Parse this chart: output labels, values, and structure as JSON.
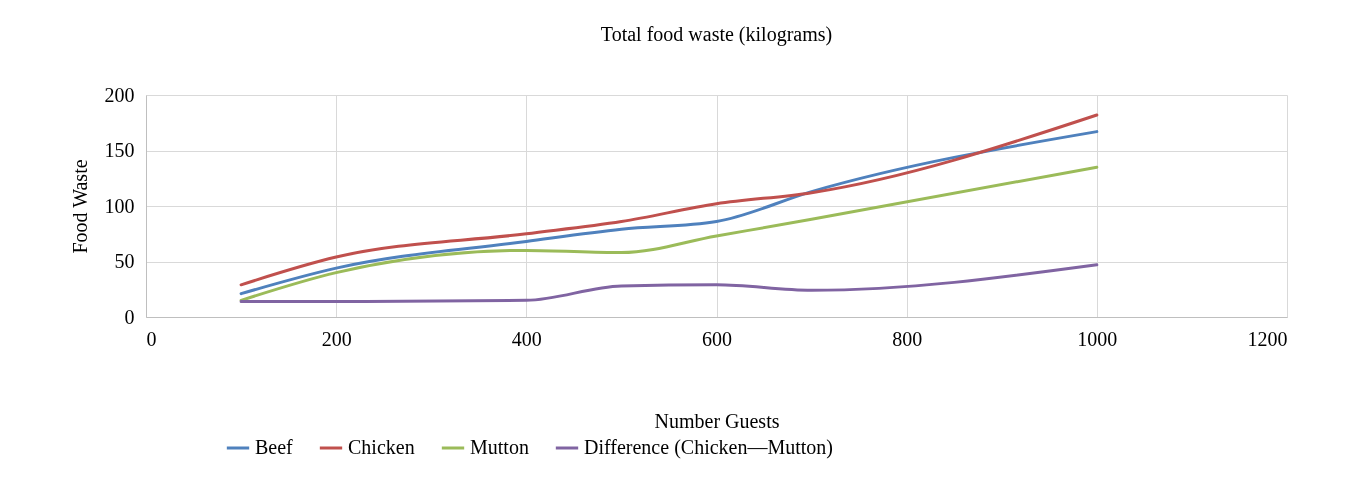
{
  "chart_data": {
    "type": "line",
    "title": "Total food waste (kilograms)",
    "xlabel": "Number Guests",
    "ylabel": "Food Waste",
    "x": [
      100,
      200,
      400,
      500,
      600,
      700,
      1000
    ],
    "series": [
      {
        "name": "Beef",
        "color": "#4f81bd",
        "values": [
          21,
          44,
          68,
          79,
          86,
          113,
          167
        ]
      },
      {
        "name": "Chicken",
        "color": "#c0504d",
        "values": [
          29,
          54,
          75,
          86,
          102,
          112,
          182
        ]
      },
      {
        "name": "Mutton",
        "color": "#9bbb59",
        "values": [
          15,
          40,
          60,
          58,
          73,
          88,
          135
        ]
      },
      {
        "name": "Difference (Chicken—Mutton)",
        "color": "#8064a2",
        "values": [
          14,
          14,
          15,
          28,
          29,
          24,
          47
        ]
      }
    ],
    "xlim": [
      0,
      1200
    ],
    "xticks": [
      0,
      200,
      400,
      600,
      800,
      1000,
      1200
    ],
    "ylim": [
      0,
      200
    ],
    "yticks": [
      0,
      50,
      100,
      150,
      200
    ],
    "grid": true,
    "legend": "bottom",
    "marker": "none",
    "line_style": "solid"
  }
}
